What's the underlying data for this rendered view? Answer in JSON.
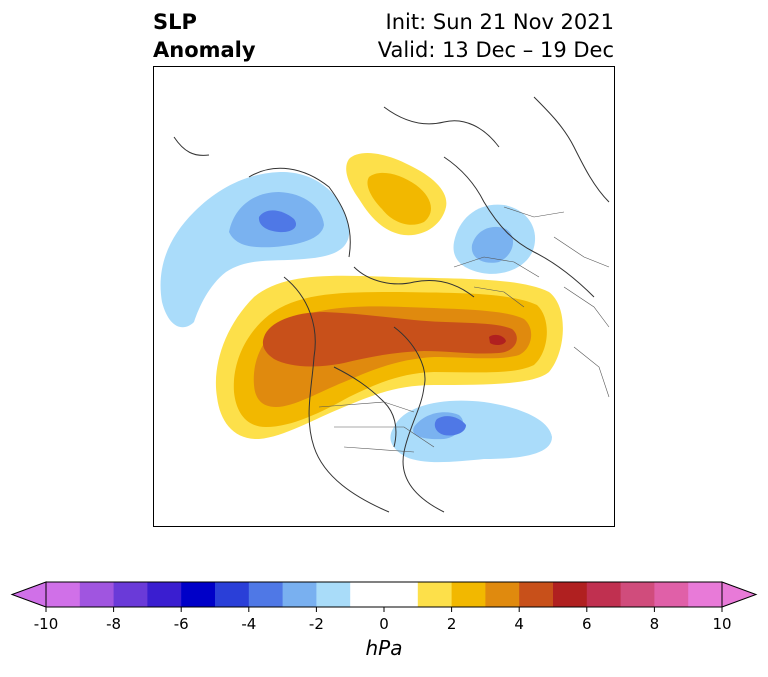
{
  "title": {
    "left_line1": "SLP",
    "left_line2": "Anomaly",
    "right_line1": "Init: Sun 21 Nov 2021",
    "right_line2": "Valid: 13 Dec – 19 Dec"
  },
  "colorbar": {
    "units": "hPa",
    "min": -10,
    "max": 10,
    "tick_labels": [
      "-10",
      "-8",
      "-6",
      "-4",
      "-2",
      "0",
      "2",
      "4",
      "6",
      "8",
      "10"
    ],
    "colors": [
      "#d070e8",
      "#a055e0",
      "#6a3ad8",
      "#3a1ed0",
      "#0000c8",
      "#2a3fd8",
      "#4f78e6",
      "#79b0f0",
      "#a9dcf9",
      "#ffffff",
      "#ffffff",
      "#fde04a",
      "#f2b800",
      "#e08a0e",
      "#c8501a",
      "#b02020",
      "#c03050",
      "#d04c7c",
      "#e060a8",
      "#e87ad8"
    ]
  },
  "anomaly_colors": {
    "neg_2": "#aadcfa",
    "neg_3": "#7ab2f0",
    "neg_4": "#4f78e6",
    "pos_1": "#fde04a",
    "pos_2": "#f2b800",
    "pos_3": "#e08a0e",
    "pos_4": "#c8501a",
    "pos_5": "#b02020"
  }
}
